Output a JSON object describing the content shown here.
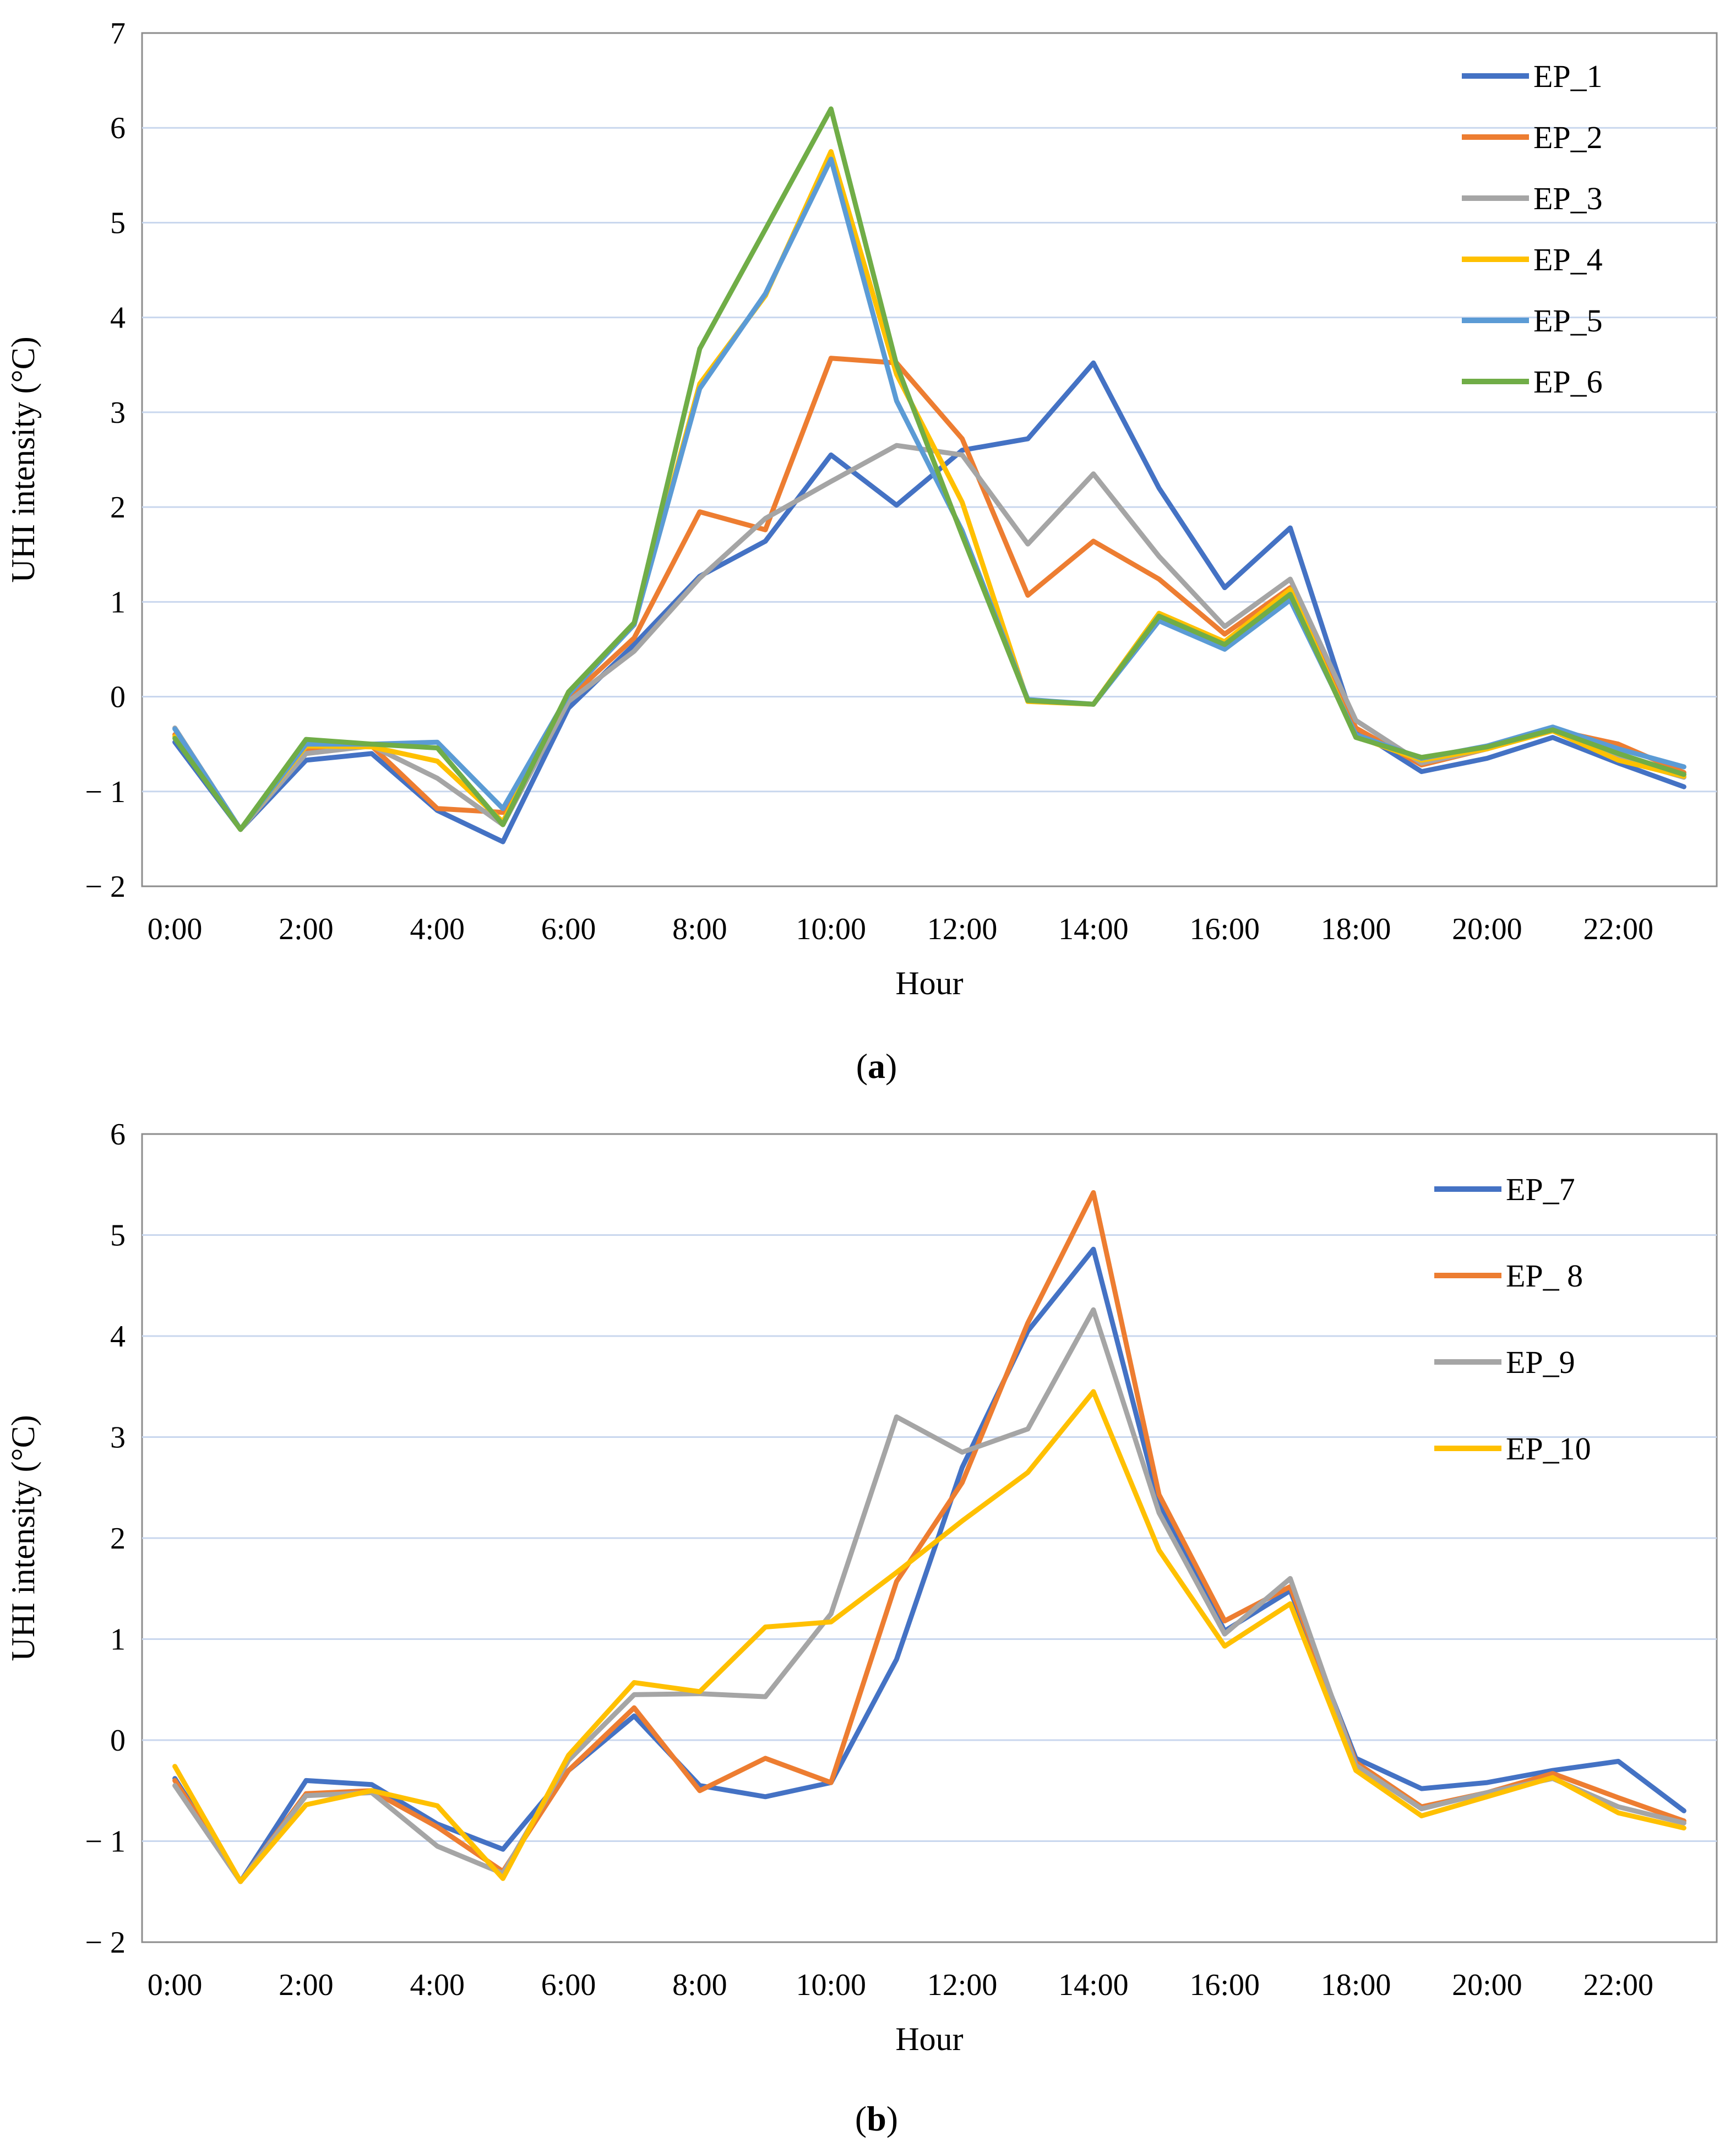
{
  "chart_data": [
    {
      "type": "line",
      "panel": "a",
      "caption_open": "(",
      "caption_letter": "a",
      "caption_close": ")",
      "xlabel": "Hour",
      "ylabel": "UHI intensity (°C)",
      "ylim": [
        -2,
        7
      ],
      "yticks": [
        7,
        6,
        5,
        4,
        3,
        2,
        1,
        0,
        -1,
        -2
      ],
      "ytick_labels": [
        "7",
        "6",
        "5",
        "4",
        "3",
        "2",
        "1",
        "0",
        "− 1",
        "− 2"
      ],
      "x_tick_labels": [
        "0:00",
        "2:00",
        "4:00",
        "6:00",
        "8:00",
        "10:00",
        "12:00",
        "14:00",
        "16:00",
        "18:00",
        "20:00",
        "22:00"
      ],
      "x": [
        0,
        1,
        2,
        3,
        4,
        5,
        6,
        7,
        8,
        9,
        10,
        11,
        12,
        13,
        14,
        15,
        16,
        17,
        18,
        19,
        20,
        21,
        22,
        23
      ],
      "grid": true,
      "legend_position": "top-right",
      "series": [
        {
          "name": "EP_1",
          "color": "#4472C4",
          "values": [
            -0.48,
            -1.4,
            -0.67,
            -0.6,
            -1.2,
            -1.53,
            -0.12,
            0.55,
            1.27,
            1.64,
            2.55,
            2.02,
            2.6,
            2.72,
            3.52,
            2.2,
            1.15,
            1.78,
            -0.35,
            -0.79,
            -0.65,
            -0.43,
            -0.7,
            -0.95
          ]
        },
        {
          "name": "EP_2",
          "color": "#ED7D31",
          "values": [
            -0.4,
            -1.4,
            -0.55,
            -0.52,
            -1.18,
            -1.22,
            -0.02,
            0.62,
            1.95,
            1.76,
            3.57,
            3.52,
            2.72,
            1.07,
            1.64,
            1.24,
            0.66,
            1.15,
            -0.33,
            -0.72,
            -0.55,
            -0.35,
            -0.5,
            -0.8
          ]
        },
        {
          "name": "EP_3",
          "color": "#A5A5A5",
          "values": [
            -0.33,
            -1.4,
            -0.6,
            -0.52,
            -0.86,
            -1.35,
            -0.05,
            0.48,
            1.25,
            1.88,
            2.27,
            2.65,
            2.55,
            1.61,
            2.35,
            1.48,
            0.74,
            1.24,
            -0.25,
            -0.7,
            -0.55,
            -0.35,
            -0.65,
            -0.85
          ]
        },
        {
          "name": "EP_4",
          "color": "#FFC000",
          "values": [
            -0.42,
            -1.4,
            -0.52,
            -0.53,
            -0.68,
            -1.32,
            0.04,
            0.76,
            3.3,
            4.23,
            5.75,
            3.4,
            2.05,
            -0.05,
            -0.08,
            0.88,
            0.58,
            1.13,
            -0.42,
            -0.67,
            -0.55,
            -0.36,
            -0.67,
            -0.84
          ]
        },
        {
          "name": "EP_5",
          "color": "#5B9BD5",
          "values": [
            -0.34,
            -1.4,
            -0.5,
            -0.5,
            -0.48,
            -1.18,
            0.02,
            0.76,
            3.25,
            4.25,
            5.67,
            3.12,
            1.75,
            -0.03,
            -0.08,
            0.8,
            0.5,
            1.02,
            -0.4,
            -0.65,
            -0.52,
            -0.32,
            -0.55,
            -0.74
          ]
        },
        {
          "name": "EP_6",
          "color": "#70AD47",
          "values": [
            -0.44,
            -1.4,
            -0.45,
            -0.5,
            -0.54,
            -1.35,
            0.05,
            0.78,
            3.67,
            4.93,
            6.2,
            3.5,
            1.7,
            -0.04,
            -0.08,
            0.85,
            0.55,
            1.08,
            -0.43,
            -0.64,
            -0.53,
            -0.35,
            -0.6,
            -0.82
          ]
        }
      ]
    },
    {
      "type": "line",
      "panel": "b",
      "caption_open": "(",
      "caption_letter": "b",
      "caption_close": ")",
      "xlabel": "Hour",
      "ylabel": "UHI intensity (°C)",
      "ylim": [
        -2,
        6
      ],
      "yticks": [
        6,
        5,
        4,
        3,
        2,
        1,
        0,
        -1,
        -2
      ],
      "ytick_labels": [
        "6",
        "5",
        "4",
        "3",
        "2",
        "1",
        "0",
        "− 1",
        "− 2"
      ],
      "x_tick_labels": [
        "0:00",
        "2:00",
        "4:00",
        "6:00",
        "8:00",
        "10:00",
        "12:00",
        "14:00",
        "16:00",
        "18:00",
        "20:00",
        "22:00"
      ],
      "x": [
        0,
        1,
        2,
        3,
        4,
        5,
        6,
        7,
        8,
        9,
        10,
        11,
        12,
        13,
        14,
        15,
        16,
        17,
        18,
        19,
        20,
        21,
        22,
        23
      ],
      "grid": true,
      "legend_position": "top-right",
      "series": [
        {
          "name": "EP_7",
          "color": "#4472C4",
          "values": [
            -0.38,
            -1.4,
            -0.4,
            -0.44,
            -0.83,
            -1.08,
            -0.3,
            0.24,
            -0.45,
            -0.56,
            -0.42,
            0.8,
            2.7,
            4.05,
            4.86,
            2.35,
            1.08,
            1.48,
            -0.18,
            -0.48,
            -0.42,
            -0.3,
            -0.21,
            -0.7
          ]
        },
        {
          "name": "EP_ 8",
          "color": "#ED7D31",
          "values": [
            -0.4,
            -1.4,
            -0.53,
            -0.5,
            -0.86,
            -1.3,
            -0.3,
            0.32,
            -0.5,
            -0.18,
            -0.42,
            1.57,
            2.55,
            4.13,
            5.42,
            2.43,
            1.18,
            1.52,
            -0.22,
            -0.66,
            -0.52,
            -0.33,
            -0.57,
            -0.8
          ]
        },
        {
          "name": "EP_9",
          "color": "#A5A5A5",
          "values": [
            -0.45,
            -1.4,
            -0.55,
            -0.52,
            -1.05,
            -1.32,
            -0.2,
            0.45,
            0.46,
            0.43,
            1.25,
            3.2,
            2.85,
            3.08,
            4.26,
            2.25,
            1.05,
            1.6,
            -0.25,
            -0.68,
            -0.52,
            -0.38,
            -0.66,
            -0.82
          ]
        },
        {
          "name": "EP_10",
          "color": "#FFC000",
          "values": [
            -0.26,
            -1.4,
            -0.64,
            -0.5,
            -0.65,
            -1.37,
            -0.15,
            0.57,
            0.48,
            1.12,
            1.17,
            1.66,
            2.17,
            2.65,
            3.45,
            1.88,
            0.93,
            1.35,
            -0.3,
            -0.75,
            -0.56,
            -0.37,
            -0.72,
            -0.87
          ]
        }
      ]
    }
  ]
}
